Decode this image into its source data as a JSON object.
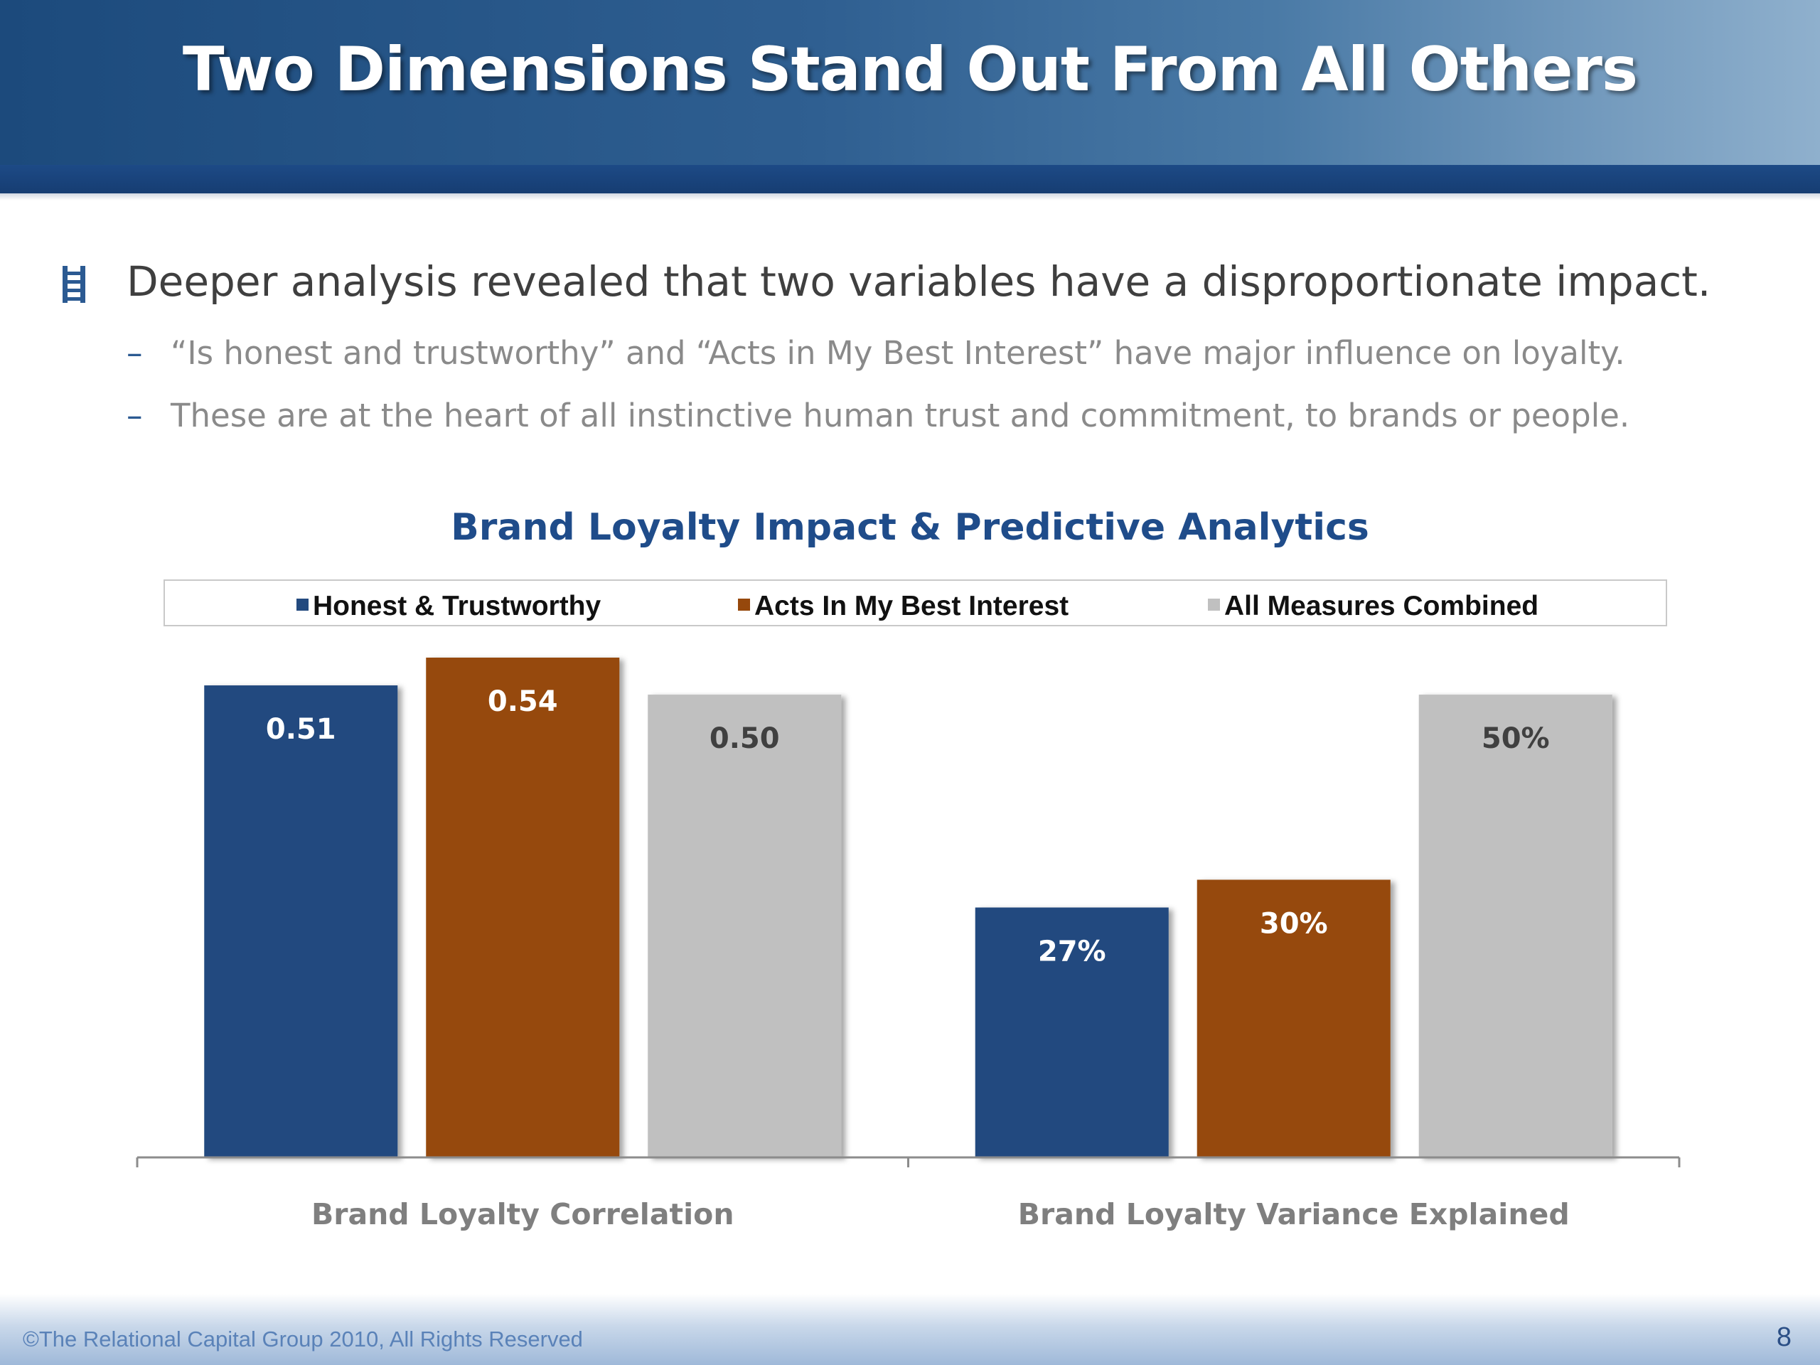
{
  "slide": {
    "title": "Two Dimensions Stand Out From All Others",
    "bullet": "Deeper analysis revealed that two variables have a disproportionate impact.",
    "sub_bullets": [
      "“Is honest and trustworthy” and “Acts in My Best Interest” have major influence on loyalty.",
      "These are at the heart of all instinctive human trust and commitment, to brands or people."
    ],
    "dash": "–",
    "footer": "©The Relational Capital Group 2010, All Rights Reserved",
    "page_number": "8",
    "bullet_icon": "ladder-icon"
  },
  "chart_data": {
    "type": "bar",
    "title": "Brand Loyalty Impact & Predictive Analytics",
    "categories": [
      "Brand Loyalty Correlation",
      "Brand Loyalty Variance Explained"
    ],
    "series": [
      {
        "name": "Honest & Trustworthy",
        "color": "#234a7f",
        "values": [
          0.51,
          0.27
        ],
        "labels": [
          "0.51",
          "27%"
        ],
        "label_color": "#ffffff"
      },
      {
        "name": "Acts In My Best Interest",
        "color": "#96480c",
        "values": [
          0.54,
          0.3
        ],
        "labels": [
          "0.54",
          "30%"
        ],
        "label_color": "#ffffff"
      },
      {
        "name": "All Measures Combined",
        "color": "#c0c0c0",
        "values": [
          0.5,
          0.5
        ],
        "labels": [
          "0.50",
          "50%"
        ],
        "label_color": "#404040"
      }
    ],
    "ylim": [
      0,
      0.54
    ],
    "grid": false,
    "legend_position": "top"
  }
}
